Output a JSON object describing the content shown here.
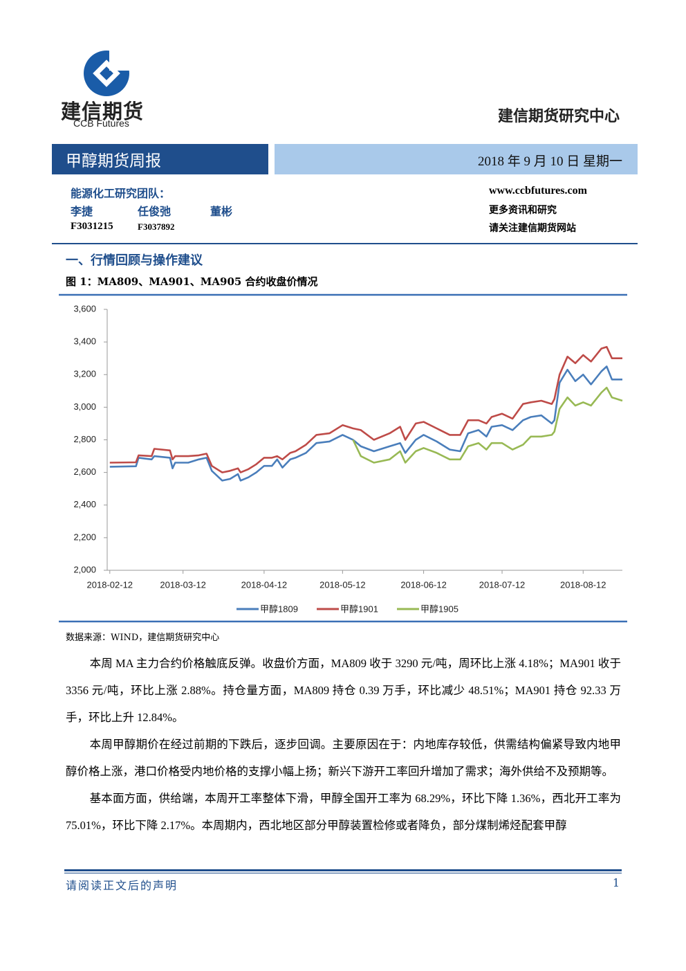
{
  "header": {
    "logo_text": "建信期货",
    "logo_sub": "CCB Futures",
    "center": "建信期货研究中心",
    "title": "甲醇期货周报",
    "date": "2018 年 9 月 10 日 星期一"
  },
  "team": {
    "label": "能源化工研究团队：",
    "names": [
      "李捷",
      "任俊弛",
      "董彬"
    ],
    "ids": [
      "F3031215",
      "F3037892"
    ]
  },
  "contact": {
    "website": "www.ccbfutures.com",
    "line1": "更多资讯和研究",
    "line2": "请关注建信期货网站"
  },
  "section": "一、行情回顾与操作建议",
  "figure_caption": "图 1：MA809、MA901、MA905 合约收盘价情况",
  "chart_data": {
    "type": "line",
    "x": [
      "2018-02-12",
      "2018-02-22",
      "2018-02-23",
      "2018-02-28",
      "2018-03-01",
      "2018-03-07",
      "2018-03-08",
      "2018-03-09",
      "2018-03-14",
      "2018-03-18",
      "2018-03-21",
      "2018-03-23",
      "2018-03-27",
      "2018-03-30",
      "2018-04-02",
      "2018-04-03",
      "2018-04-06",
      "2018-04-09",
      "2018-04-12",
      "2018-04-15",
      "2018-04-17",
      "2018-04-19",
      "2018-04-22",
      "2018-04-24",
      "2018-04-28",
      "2018-05-02",
      "2018-05-07",
      "2018-05-12",
      "2018-05-16",
      "2018-05-19",
      "2018-05-24",
      "2018-05-30",
      "2018-06-03",
      "2018-06-05",
      "2018-06-09",
      "2018-06-12",
      "2018-06-17",
      "2018-06-22",
      "2018-06-26",
      "2018-06-29",
      "2018-07-03",
      "2018-07-06",
      "2018-07-08",
      "2018-07-12",
      "2018-07-16",
      "2018-07-20",
      "2018-07-23",
      "2018-07-27",
      "2018-07-31",
      "2018-08-01",
      "2018-08-03",
      "2018-08-06",
      "2018-08-09",
      "2018-08-12",
      "2018-08-15",
      "2018-08-19",
      "2018-08-21",
      "2018-08-23",
      "2018-08-27"
    ],
    "series": [
      {
        "name": "甲醇1809",
        "color": "#4a7ebb",
        "values": [
          2635,
          2638,
          2690,
          2680,
          2700,
          2690,
          2625,
          2660,
          2660,
          2680,
          2690,
          2610,
          2550,
          2560,
          2590,
          2550,
          2570,
          2600,
          2640,
          2640,
          2680,
          2630,
          2680,
          2690,
          2720,
          2780,
          2790,
          2830,
          2800,
          2760,
          2730,
          2760,
          2780,
          2720,
          2800,
          2830,
          2790,
          2740,
          2730,
          2840,
          2860,
          2820,
          2880,
          2890,
          2860,
          2920,
          2940,
          2950,
          2900,
          2920,
          3150,
          3230,
          3160,
          3200,
          3140,
          3220,
          3250,
          3170,
          3170
        ]
      },
      {
        "name": "甲醇1901",
        "color": "#be4b48",
        "values": [
          2660,
          2662,
          2705,
          2700,
          2745,
          2735,
          2680,
          2700,
          2700,
          2705,
          2715,
          2640,
          2600,
          2610,
          2625,
          2600,
          2620,
          2650,
          2690,
          2690,
          2700,
          2680,
          2720,
          2730,
          2770,
          2830,
          2840,
          2890,
          2870,
          2860,
          2800,
          2840,
          2880,
          2800,
          2900,
          2910,
          2870,
          2830,
          2830,
          2920,
          2920,
          2900,
          2940,
          2960,
          2930,
          3020,
          3030,
          3040,
          3020,
          3050,
          3200,
          3310,
          3270,
          3320,
          3280,
          3360,
          3370,
          3300,
          3300
        ]
      },
      {
        "name": "甲醇1905",
        "color": "#98b954",
        "values": [
          null,
          null,
          null,
          null,
          null,
          null,
          null,
          null,
          null,
          null,
          null,
          null,
          null,
          null,
          null,
          null,
          null,
          null,
          null,
          null,
          null,
          null,
          null,
          null,
          null,
          null,
          null,
          null,
          2800,
          2700,
          2660,
          2680,
          2730,
          2660,
          2730,
          2750,
          2720,
          2680,
          2680,
          2760,
          2780,
          2740,
          2780,
          2780,
          2740,
          2770,
          2820,
          2820,
          2830,
          2850,
          2990,
          3060,
          3010,
          3030,
          3010,
          3090,
          3120,
          3060,
          3040
        ]
      }
    ],
    "xlim": [
      "2018-02-11",
      "2018-08-27"
    ],
    "xticks": [
      "2018-02-12",
      "2018-03-12",
      "2018-04-12",
      "2018-05-12",
      "2018-06-12",
      "2018-07-12",
      "2018-08-12"
    ],
    "ylim": [
      2000,
      3600
    ],
    "yticks": [
      {
        "value": 2000,
        "label": "2,000"
      },
      {
        "value": 2200,
        "label": "2,200"
      },
      {
        "value": 2400,
        "label": "2,400"
      },
      {
        "value": 2600,
        "label": "2,600"
      },
      {
        "value": 2800,
        "label": "2,800"
      },
      {
        "value": 3000,
        "label": "3,000"
      },
      {
        "value": 3200,
        "label": "3,200"
      },
      {
        "value": 3400,
        "label": "3,400"
      },
      {
        "value": 3600,
        "label": "3,600"
      }
    ],
    "grid": false,
    "legend": "bottom"
  },
  "source": "数据来源：WIND，建信期货研究中心",
  "paragraphs": [
    "本周 MA 主力合约价格触底反弹。收盘价方面，MA809 收于 3290 元/吨，周环比上涨 4.18%；MA901 收于 3356 元/吨，环比上涨 2.88%。持仓量方面，MA809 持仓 0.39 万手，环比减少 48.51%；MA901 持仓 92.33 万手，环比上升 12.84%。",
    "本周甲醇期价在经过前期的下跌后，逐步回调。主要原因在于：内地库存较低，供需结构偏紧导致内地甲醇价格上涨，港口价格受内地价格的支撑小幅上扬；新兴下游开工率回升增加了需求；海外供给不及预期等。",
    "基本面方面，供给端，本周开工率整体下滑，甲醇全国开工率为 68.29%，环比下降 1.36%，西北开工率为 75.01%，环比下降 2.17%。本周期内，西北地区部分甲醇装置检修或者降负，部分煤制烯烃配套甲醇"
  ],
  "footer": {
    "disclaimer": "请阅读正文后的声明",
    "page": "1"
  }
}
